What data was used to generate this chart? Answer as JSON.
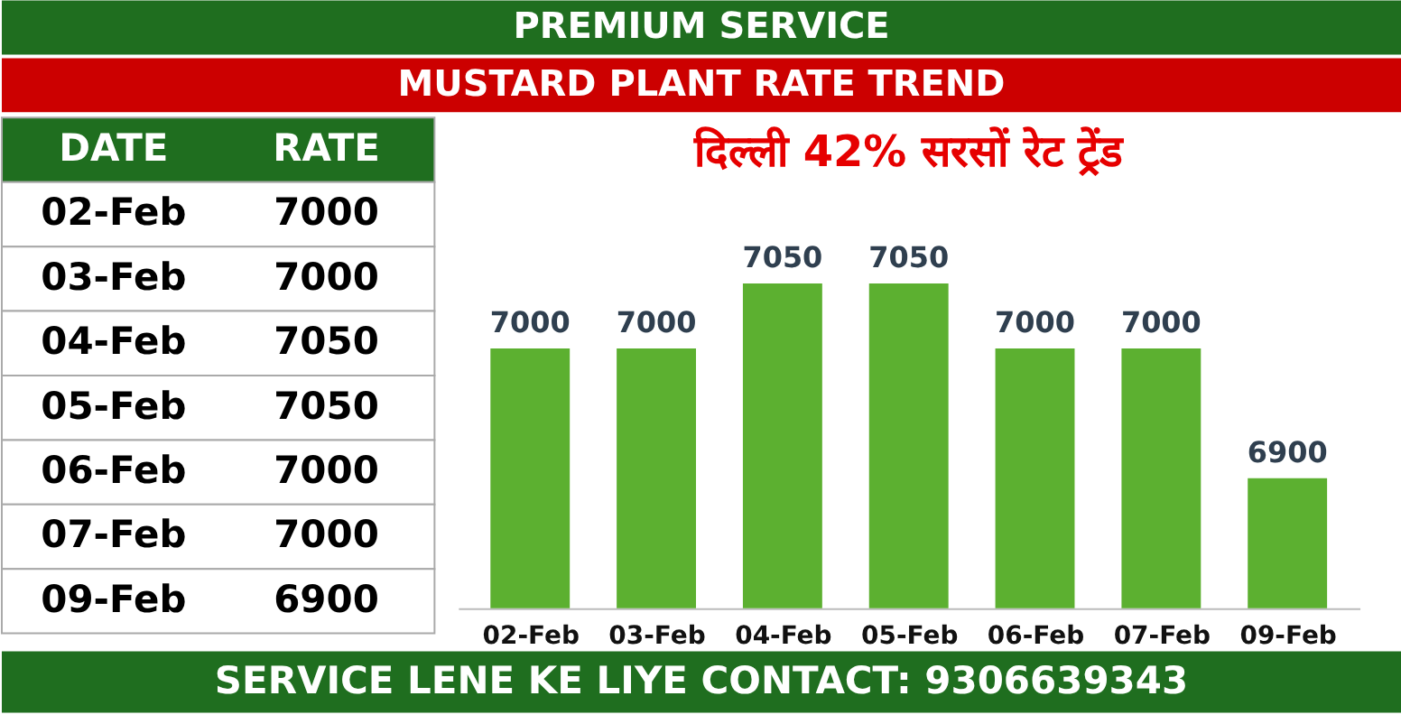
{
  "chart_data": [
    {
      "type": "bar",
      "title": "दिल्ली 42% सरसों रेट ट्रेंड",
      "categories": [
        "02-Feb",
        "03-Feb",
        "04-Feb",
        "05-Feb",
        "06-Feb",
        "07-Feb",
        "09-Feb"
      ],
      "values": [
        7000,
        7000,
        7050,
        7050,
        7000,
        7000,
        6900
      ],
      "color": "#5cb030",
      "ylim": [
        6800,
        7050
      ],
      "data_labels": true,
      "grid": false,
      "legend": false,
      "annotations": [
        "PREMIUM SERVICE",
        "MUSTARD PLANT RATE TREND",
        "SERVICE LENE KE LIYE CONTACT: 9306639343"
      ]
    },
    {
      "type": "other",
      "categories": [
        "02-Feb",
        "03-Feb",
        "04-Feb",
        "05-Feb",
        "06-Feb",
        "07-Feb",
        "09-Feb"
      ],
      "values": [
        7000,
        7000,
        7050,
        7050,
        7000,
        7000,
        6900
      ],
      "data_labels": true,
      "annotations": [
        "DATE",
        "RATE"
      ]
    }
  ]
}
